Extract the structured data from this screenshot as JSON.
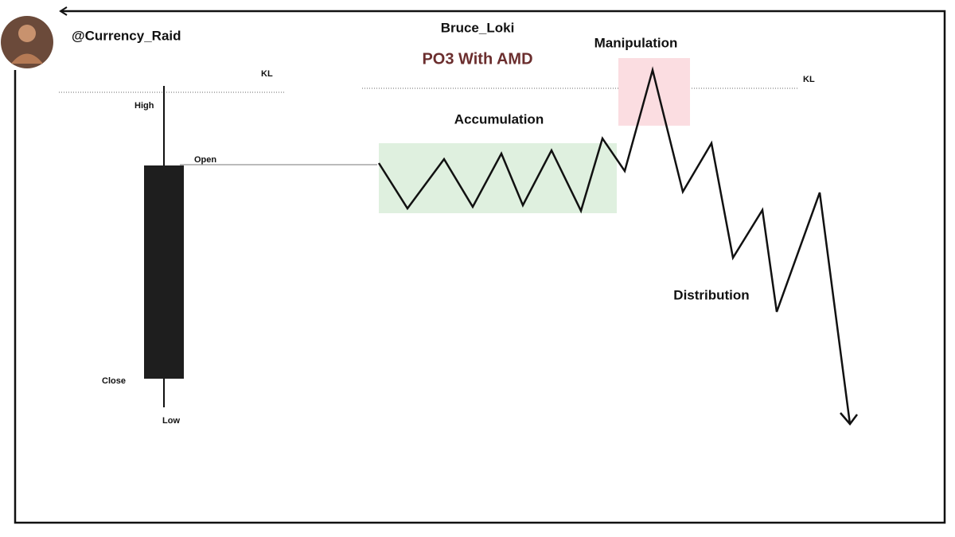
{
  "header": {
    "handle": "@Currency_Raid",
    "author": "Bruce_Loki",
    "title": "PO3 With AMD"
  },
  "candle": {
    "high": "High",
    "open": "Open",
    "close": "Close",
    "low": "Low"
  },
  "key_levels": [
    "KL",
    "KL"
  ],
  "phases": {
    "accumulation": "Accumulation",
    "manipulation": "Manipulation",
    "distribution": "Distribution"
  }
}
